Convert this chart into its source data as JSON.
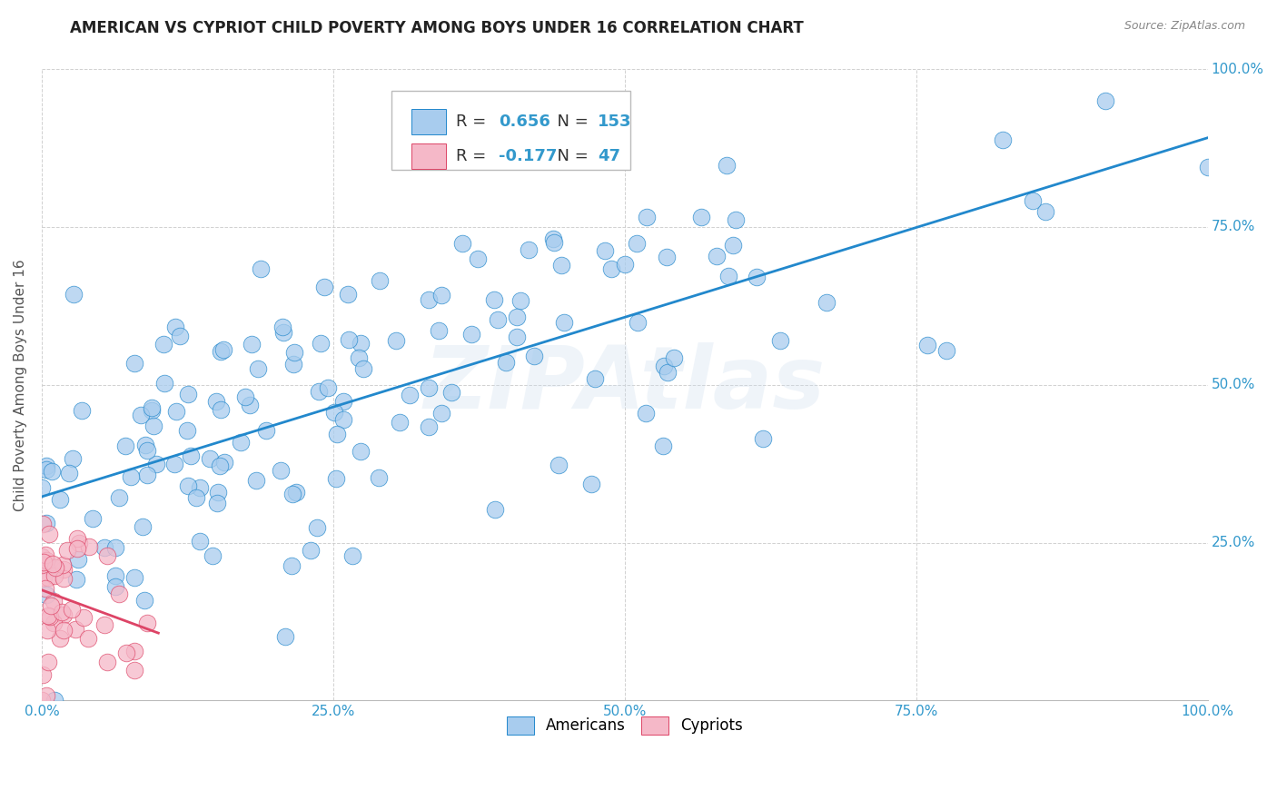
{
  "title": "AMERICAN VS CYPRIOT CHILD POVERTY AMONG BOYS UNDER 16 CORRELATION CHART",
  "source": "Source: ZipAtlas.com",
  "ylabel": "Child Poverty Among Boys Under 16",
  "r_american": 0.656,
  "n_american": 153,
  "r_cypriot": -0.177,
  "n_cypriot": 47,
  "american_color": "#a8ccee",
  "cypriot_color": "#f5b8c8",
  "american_line_color": "#2288cc",
  "cypriot_line_color": "#dd4466",
  "watermark": "ZIPAtlas",
  "background_color": "#ffffff",
  "grid_color": "#cccccc",
  "title_fontsize": 12,
  "axis_label_fontsize": 11,
  "tick_fontsize": 11,
  "legend_fontsize": 13,
  "xlim": [
    0.0,
    1.0
  ],
  "ylim": [
    0.0,
    1.0
  ],
  "xticks": [
    0.0,
    0.25,
    0.5,
    0.75,
    1.0
  ],
  "yticks": [
    0.0,
    0.25,
    0.5,
    0.75,
    1.0
  ],
  "xticklabels": [
    "0.0%",
    "25.0%",
    "50.0%",
    "75.0%",
    "100.0%"
  ],
  "ylabels_left": [
    "",
    "",
    "",
    "",
    ""
  ],
  "ylabels_right": [
    "",
    "25.0%",
    "50.0%",
    "75.0%",
    "100.0%"
  ],
  "seed_american": 7,
  "seed_cypriot": 13
}
